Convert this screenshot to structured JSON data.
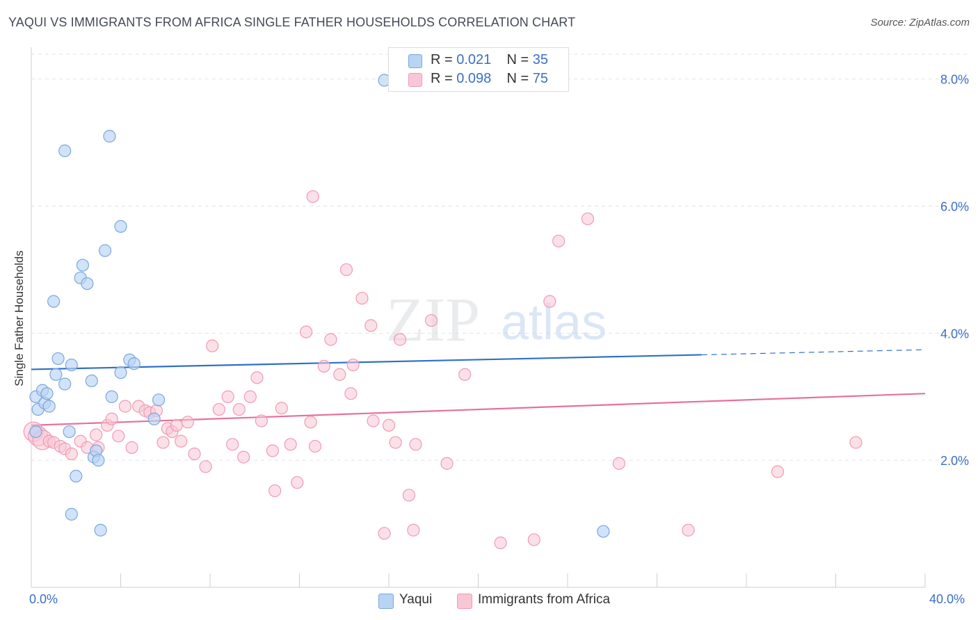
{
  "header": {
    "title": "YAQUI VS IMMIGRANTS FROM AFRICA SINGLE FATHER HOUSEHOLDS CORRELATION CHART",
    "source": "Source: ZipAtlas.com"
  },
  "watermark": {
    "zip": "ZIP",
    "atlas": "atlas"
  },
  "legend": {
    "rows": [
      {
        "r_label": "R = ",
        "r_value": "0.021",
        "n_label": "N = ",
        "n_value": "35"
      },
      {
        "r_label": "R = ",
        "r_value": "0.098",
        "n_label": "N = ",
        "n_value": "75"
      }
    ]
  },
  "bottom_legend": {
    "yaqui": "Yaqui",
    "africa": "Immigrants from Africa"
  },
  "x_axis": {
    "min_label": "0.0%",
    "max_label": "40.0%"
  },
  "colors": {
    "yaqui_fill": "#b8d4f5",
    "yaqui_stroke": "#7aa6dd",
    "yaqui_line": "#2f6fc9",
    "africa_fill": "#f9c6d5",
    "africa_stroke": "#ee9ab5",
    "africa_line": "#e7709a",
    "tick_label": "#3a6fc4",
    "grid": "#e2e2e2"
  },
  "chart_data": {
    "type": "scatter",
    "title": "YAQUI VS IMMIGRANTS FROM AFRICA SINGLE FATHER HOUSEHOLDS CORRELATION CHART",
    "xlabel": "",
    "ylabel": "Single Father Households",
    "xlim": [
      0,
      40
    ],
    "ylim": [
      0,
      8.5
    ],
    "y_ticks": [
      {
        "value": 2,
        "label": "2.0%"
      },
      {
        "value": 4,
        "label": "4.0%"
      },
      {
        "value": 6,
        "label": "6.0%"
      },
      {
        "value": 8,
        "label": "8.0%"
      }
    ],
    "grid": true,
    "series": [
      {
        "name": "Yaqui",
        "color": "#b8d4f5",
        "points": [
          [
            0.2,
            2.45
          ],
          [
            0.2,
            3.0
          ],
          [
            0.3,
            2.8
          ],
          [
            0.5,
            3.1
          ],
          [
            0.6,
            2.9
          ],
          [
            0.7,
            3.05
          ],
          [
            0.8,
            2.85
          ],
          [
            1.0,
            4.5
          ],
          [
            1.1,
            3.35
          ],
          [
            1.2,
            3.6
          ],
          [
            1.5,
            6.87
          ],
          [
            1.5,
            3.2
          ],
          [
            1.7,
            2.45
          ],
          [
            1.8,
            1.15
          ],
          [
            1.8,
            3.5
          ],
          [
            2.0,
            1.75
          ],
          [
            2.2,
            4.87
          ],
          [
            2.3,
            5.07
          ],
          [
            2.5,
            4.78
          ],
          [
            2.7,
            3.25
          ],
          [
            2.8,
            2.05
          ],
          [
            2.9,
            2.15
          ],
          [
            3.0,
            2.0
          ],
          [
            3.1,
            0.9
          ],
          [
            3.3,
            5.3
          ],
          [
            3.5,
            7.1
          ],
          [
            3.6,
            3.0
          ],
          [
            4.0,
            3.38
          ],
          [
            4.0,
            5.68
          ],
          [
            4.4,
            3.58
          ],
          [
            4.6,
            3.52
          ],
          [
            5.5,
            2.65
          ],
          [
            5.7,
            2.95
          ],
          [
            15.8,
            7.98
          ],
          [
            25.6,
            0.88
          ]
        ]
      },
      {
        "name": "Immigrants from Africa",
        "color": "#f9c6d5",
        "points": [
          [
            0.1,
            2.45
          ],
          [
            0.3,
            2.38
          ],
          [
            0.5,
            2.32
          ],
          [
            0.8,
            2.3
          ],
          [
            1.0,
            2.28
          ],
          [
            1.3,
            2.22
          ],
          [
            1.5,
            2.18
          ],
          [
            1.8,
            2.1
          ],
          [
            2.2,
            2.3
          ],
          [
            2.5,
            2.2
          ],
          [
            2.9,
            2.4
          ],
          [
            3.0,
            2.2
          ],
          [
            3.4,
            2.55
          ],
          [
            3.6,
            2.65
          ],
          [
            3.9,
            2.38
          ],
          [
            4.2,
            2.85
          ],
          [
            4.5,
            2.2
          ],
          [
            4.8,
            2.85
          ],
          [
            5.1,
            2.78
          ],
          [
            5.3,
            2.75
          ],
          [
            5.6,
            2.78
          ],
          [
            5.9,
            2.28
          ],
          [
            6.1,
            2.5
          ],
          [
            6.3,
            2.45
          ],
          [
            6.5,
            2.55
          ],
          [
            6.7,
            2.3
          ],
          [
            7.0,
            2.6
          ],
          [
            7.3,
            2.1
          ],
          [
            7.8,
            1.9
          ],
          [
            8.1,
            3.8
          ],
          [
            8.4,
            2.8
          ],
          [
            8.8,
            3.0
          ],
          [
            9.0,
            2.25
          ],
          [
            9.3,
            2.8
          ],
          [
            9.5,
            2.05
          ],
          [
            9.8,
            3.0
          ],
          [
            10.1,
            3.3
          ],
          [
            10.3,
            2.62
          ],
          [
            10.8,
            2.15
          ],
          [
            10.9,
            1.52
          ],
          [
            11.2,
            2.82
          ],
          [
            11.6,
            2.25
          ],
          [
            11.9,
            1.65
          ],
          [
            12.3,
            4.02
          ],
          [
            12.5,
            2.6
          ],
          [
            12.7,
            2.22
          ],
          [
            12.6,
            6.15
          ],
          [
            13.1,
            3.48
          ],
          [
            13.4,
            3.9
          ],
          [
            13.8,
            3.35
          ],
          [
            14.1,
            5.0
          ],
          [
            14.3,
            3.05
          ],
          [
            14.4,
            3.5
          ],
          [
            14.8,
            4.55
          ],
          [
            15.2,
            4.12
          ],
          [
            15.3,
            2.62
          ],
          [
            15.8,
            0.85
          ],
          [
            16.0,
            2.55
          ],
          [
            16.3,
            2.28
          ],
          [
            16.5,
            3.9
          ],
          [
            16.9,
            1.45
          ],
          [
            17.1,
            0.9
          ],
          [
            17.2,
            2.25
          ],
          [
            17.9,
            4.2
          ],
          [
            18.6,
            1.95
          ],
          [
            19.4,
            3.35
          ],
          [
            21.0,
            0.7
          ],
          [
            22.5,
            0.75
          ],
          [
            23.2,
            4.5
          ],
          [
            23.6,
            5.45
          ],
          [
            24.9,
            5.8
          ],
          [
            26.3,
            1.95
          ],
          [
            29.4,
            0.9
          ],
          [
            33.4,
            1.82
          ],
          [
            36.9,
            2.28
          ]
        ]
      }
    ],
    "trend_lines": [
      {
        "name": "Yaqui",
        "x0": 0,
        "y0": 3.43,
        "x1": 30,
        "y1": 3.66,
        "dashed_to": 40,
        "dashed_y": 3.74
      },
      {
        "name": "Immigrants from Africa",
        "x0": 0,
        "y0": 2.55,
        "x1": 40,
        "y1": 3.05
      }
    ]
  }
}
